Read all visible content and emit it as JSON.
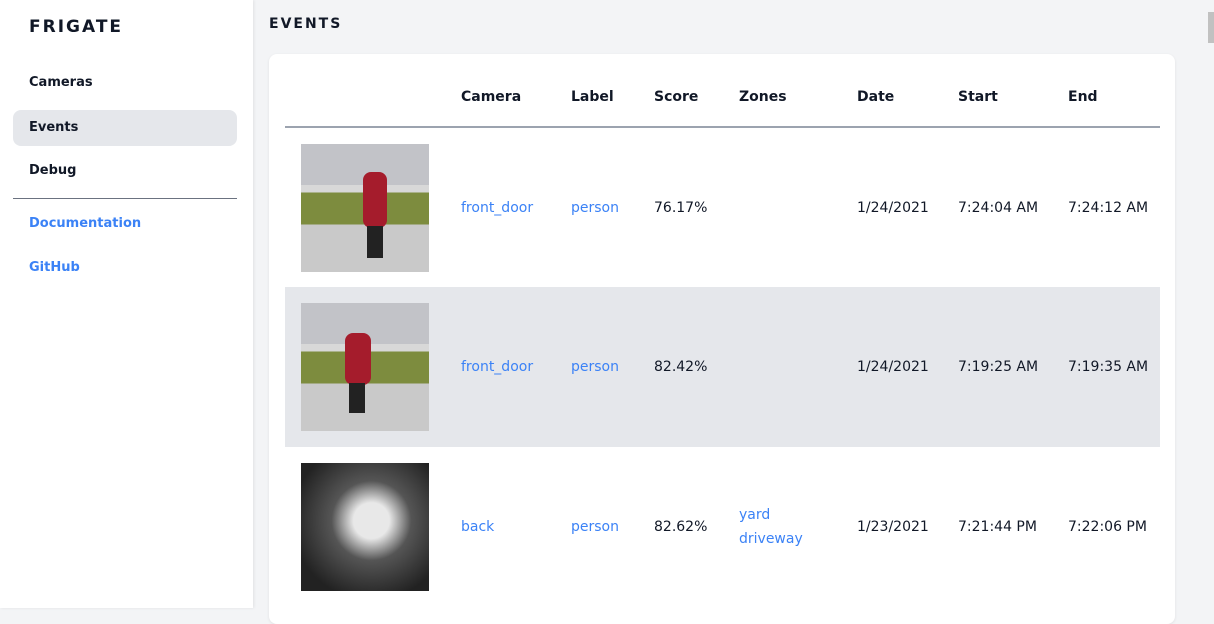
{
  "sidebar": {
    "brand": "FRIGATE",
    "items": [
      {
        "label": "Cameras",
        "active": false
      },
      {
        "label": "Events",
        "active": true
      },
      {
        "label": "Debug",
        "active": false
      }
    ],
    "links": [
      {
        "label": "Documentation"
      },
      {
        "label": "GitHub"
      }
    ]
  },
  "page": {
    "title": "EVENTS"
  },
  "table": {
    "headers": [
      "",
      "Camera",
      "Label",
      "Score",
      "Zones",
      "Date",
      "Start",
      "End"
    ],
    "rows": [
      {
        "camera": "front_door",
        "label": "person",
        "score": "76.17%",
        "zones": [
          "",
          ""
        ],
        "date": "1/24/2021",
        "start": "7:24:04 AM",
        "end": "7:24:12 AM"
      },
      {
        "camera": "front_door",
        "label": "person",
        "score": "82.42%",
        "zones": [
          "",
          ""
        ],
        "date": "1/24/2021",
        "start": "7:19:25 AM",
        "end": "7:19:35 AM"
      },
      {
        "camera": "back",
        "label": "person",
        "score": "82.62%",
        "zones": [
          "yard",
          "driveway"
        ],
        "date": "1/23/2021",
        "start": "7:21:44 PM",
        "end": "7:22:06 PM"
      }
    ]
  },
  "colors": {
    "link": "#3b82f6",
    "active_bg": "#e5e7eb",
    "row_alt": "#e5e7eb"
  }
}
